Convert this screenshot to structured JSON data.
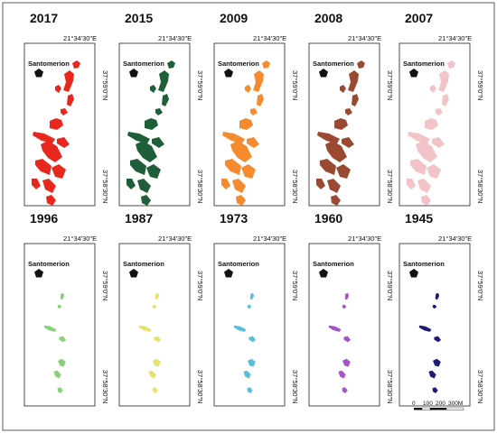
{
  "labels": {
    "lon": "21°34'30\"E",
    "lat_top": "37°59'0\"N",
    "lat_bottom": "37°58'30\"N",
    "town": "Santomerion"
  },
  "panels": [
    {
      "year": "2017",
      "color": "#e8281e",
      "density": 1.0
    },
    {
      "year": "2015",
      "color": "#1e5e38",
      "density": 1.0
    },
    {
      "year": "2009",
      "color": "#f58a2e",
      "density": 1.0
    },
    {
      "year": "2008",
      "color": "#9a4a32",
      "density": 1.0
    },
    {
      "year": "2007",
      "color": "#f2c4c8",
      "density": 1.0
    },
    {
      "year": "1996",
      "color": "#8ad07a",
      "density": 0.22
    },
    {
      "year": "1987",
      "color": "#e6e26a",
      "density": 0.22
    },
    {
      "year": "1973",
      "color": "#58c0d8",
      "density": 0.22
    },
    {
      "year": "1960",
      "color": "#a652c8",
      "density": 0.18
    },
    {
      "year": "1945",
      "color": "#1c1c78",
      "density": 0.16
    }
  ],
  "scale_bar": {
    "ticks": [
      "0",
      "100",
      "200",
      "300M"
    ]
  }
}
